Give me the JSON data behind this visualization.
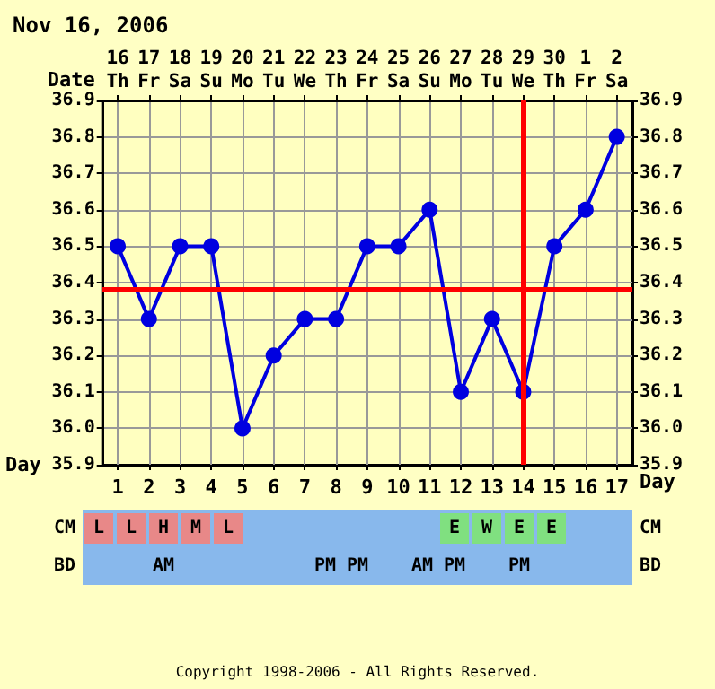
{
  "chart_data": [
    {
      "type": "line",
      "title": "Nov 16, 2006",
      "xlabel": "Day",
      "x2label": "Date",
      "x": [
        1,
        2,
        3,
        4,
        5,
        6,
        7,
        8,
        9,
        10,
        11,
        12,
        13,
        14,
        15,
        16,
        17
      ],
      "series": [
        {
          "color": "#0000e0",
          "values": [
            36.5,
            36.3,
            36.5,
            36.5,
            36.0,
            36.2,
            36.3,
            36.3,
            36.5,
            36.5,
            36.6,
            36.1,
            36.3,
            36.1,
            36.5,
            36.6,
            36.8
          ]
        }
      ],
      "xlim": [
        0.5,
        17.5
      ],
      "xticks": [
        1,
        2,
        3,
        4,
        5,
        6,
        7,
        8,
        9,
        10,
        11,
        12,
        13,
        14,
        15,
        16,
        17
      ],
      "x2lim": [
        "2006-11-15T12:00",
        "2006-12-02T12:00"
      ],
      "x2ticks": [
        {
          "value": "2006-11-16",
          "label": "16\nTh"
        },
        {
          "value": "2006-11-17",
          "label": "17\nFr"
        },
        {
          "value": "2006-11-18",
          "label": "18\nSa"
        },
        {
          "value": "2006-11-19",
          "label": "19\nSu"
        },
        {
          "value": "2006-11-20",
          "label": "20\nMo"
        },
        {
          "value": "2006-11-21",
          "label": "21\nTu"
        },
        {
          "value": "2006-11-22",
          "label": "22\nWe"
        },
        {
          "value": "2006-11-23",
          "label": "23\nTh"
        },
        {
          "value": "2006-11-24",
          "label": "24\nFr"
        },
        {
          "value": "2006-11-25",
          "label": "25\nSa"
        },
        {
          "value": "2006-11-26",
          "label": "26\nSu"
        },
        {
          "value": "2006-11-27",
          "label": "27\nMo"
        },
        {
          "value": "2006-11-28",
          "label": "28\nTu"
        },
        {
          "value": "2006-11-29",
          "label": "29\nWe"
        },
        {
          "value": "2006-11-30",
          "label": "30\nTh"
        },
        {
          "value": "2006-12-01",
          "label": "1\nFr"
        },
        {
          "value": "2006-12-02",
          "label": "2\nSa"
        }
      ],
      "ylim": [
        35.9,
        36.9
      ],
      "yticks": [
        35.9,
        {
          "value": 36.0,
          "label": "36.0"
        },
        36.1,
        36.2,
        36.3,
        36.4,
        36.5,
        36.6,
        36.7,
        36.8,
        36.9
      ],
      "y2lim": [
        35.9,
        36.9
      ],
      "y2ticks": [
        35.9,
        {
          "value": 36.0,
          "label": "36.0"
        },
        36.1,
        36.2,
        36.3,
        36.4,
        36.5,
        36.6,
        36.7,
        36.8,
        36.9
      ],
      "ref_lines": [
        {
          "axis": "y",
          "value": 36.38,
          "color": "#ff0000"
        },
        {
          "axis": "x",
          "value": 14,
          "color": "#ff0000"
        }
      ],
      "grid": true,
      "marker": "circle",
      "line_style": "solid"
    },
    {
      "type": "other",
      "y_categories": [
        "CM",
        "BD"
      ],
      "y2_categories": [
        "CM",
        "BD"
      ],
      "cell_labels": [
        [
          "L",
          "L",
          "H",
          "M",
          "L",
          null,
          null,
          null,
          null,
          null,
          null,
          "E",
          "W",
          "E",
          "E",
          null,
          null
        ],
        [
          null,
          null,
          "AM",
          null,
          null,
          null,
          null,
          "PM",
          "PM",
          null,
          "AM",
          "PM",
          null,
          "PM",
          null,
          null,
          null
        ]
      ],
      "colors": [
        [
          "#e88888",
          "#e88888",
          "#e88888",
          "#e88888",
          "#e88888",
          null,
          null,
          null,
          null,
          null,
          null,
          "#80e080",
          "#80e080",
          "#80e080",
          "#80e080",
          null,
          null
        ],
        [
          null,
          null,
          null,
          null,
          null,
          null,
          null,
          null,
          null,
          null,
          null,
          null,
          null,
          null,
          null,
          null,
          null
        ]
      ],
      "annotations": [
        "Copyright 1998-2006 - All Rights Reserved."
      ]
    }
  ]
}
